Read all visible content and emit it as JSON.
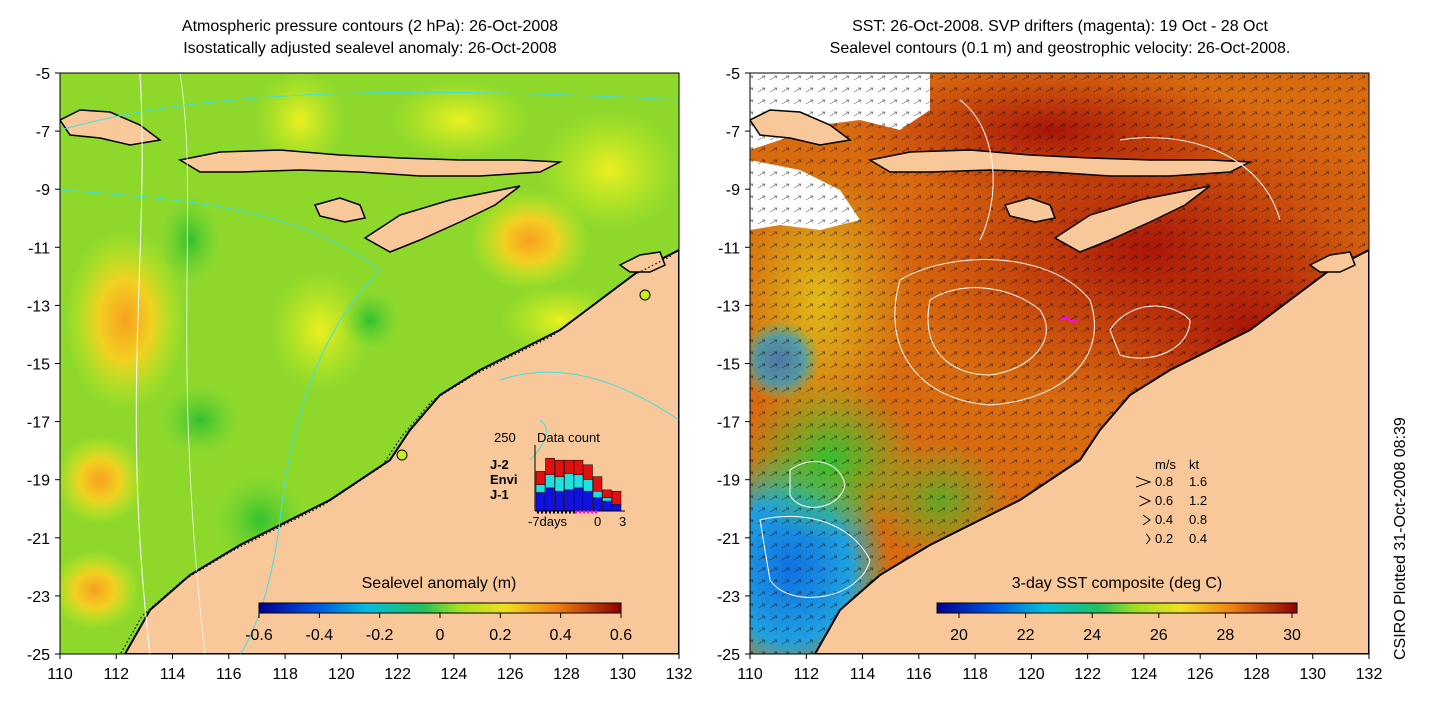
{
  "left_panel": {
    "title_line1": "Atmospheric pressure contours (2 hPa): 26-Oct-2008",
    "title_line2": "Isostatically adjusted sealevel anomaly: 26-Oct-2008",
    "colorbar_label": "Sealevel anomaly (m)",
    "colorbar_ticks": [
      "-0.6",
      "-0.4",
      "-0.2",
      "0",
      "0.2",
      "0.4",
      "0.6"
    ],
    "colorbar_range": [
      -0.6,
      0.6
    ],
    "inset": {
      "count_max_label": "250",
      "title": "Data count",
      "legend": [
        {
          "label": "J-2",
          "color": "#e01010"
        },
        {
          "label": "Envi",
          "color": "#20e0e0"
        },
        {
          "label": "J-1",
          "color": "#1010e0"
        }
      ],
      "x_labels": [
        "-7days",
        "0",
        "3"
      ],
      "bars": [
        {
          "j1": 0.28,
          "envi": 0.12,
          "j2": 0.2
        },
        {
          "j1": 0.35,
          "envi": 0.2,
          "j2": 0.25
        },
        {
          "j1": 0.3,
          "envi": 0.22,
          "j2": 0.25
        },
        {
          "j1": 0.32,
          "envi": 0.25,
          "j2": 0.2
        },
        {
          "j1": 0.35,
          "envi": 0.2,
          "j2": 0.22
        },
        {
          "j1": 0.3,
          "envi": 0.18,
          "j2": 0.22
        },
        {
          "j1": 0.2,
          "envi": 0.1,
          "j2": 0.22
        },
        {
          "j1": 0.15,
          "envi": 0.05,
          "j2": 0.12
        },
        {
          "j1": 0.1,
          "envi": 0.0,
          "j2": 0.2
        }
      ]
    }
  },
  "right_panel": {
    "title_line1": "SST: 26-Oct-2008. SVP drifters (magenta): 19 Oct - 28 Oct",
    "title_line2": "Sealevel contours (0.1 m) and geostrophic velocity: 26-Oct-2008.",
    "colorbar_label": "3-day SST composite (deg C)",
    "colorbar_ticks": [
      "20",
      "22",
      "24",
      "26",
      "28",
      "30"
    ],
    "colorbar_range": [
      20,
      30
    ],
    "velocity_legend": {
      "header_ms": "m/s",
      "header_kt": "kt",
      "rows": [
        {
          "ms": "0.8",
          "kt": "1.6"
        },
        {
          "ms": "0.6",
          "kt": "1.2"
        },
        {
          "ms": "0.4",
          "kt": "0.8"
        },
        {
          "ms": "0.2",
          "kt": "0.4"
        }
      ]
    }
  },
  "axes": {
    "x_ticks": [
      "110",
      "112",
      "114",
      "116",
      "118",
      "120",
      "122",
      "124",
      "126",
      "128",
      "130",
      "132"
    ],
    "y_ticks": [
      "-5",
      "-7",
      "-9",
      "-11",
      "-13",
      "-15",
      "-17",
      "-19",
      "-21",
      "-23",
      "-25"
    ],
    "lon_range": [
      110,
      132
    ],
    "lat_range": [
      -25,
      -5
    ]
  },
  "credit": "CSIRO Plotted 31-Oct-2008 08:39",
  "colors": {
    "land": "#f9c89a",
    "contour_cyan": "#40e0e0",
    "coast": "#000000"
  }
}
